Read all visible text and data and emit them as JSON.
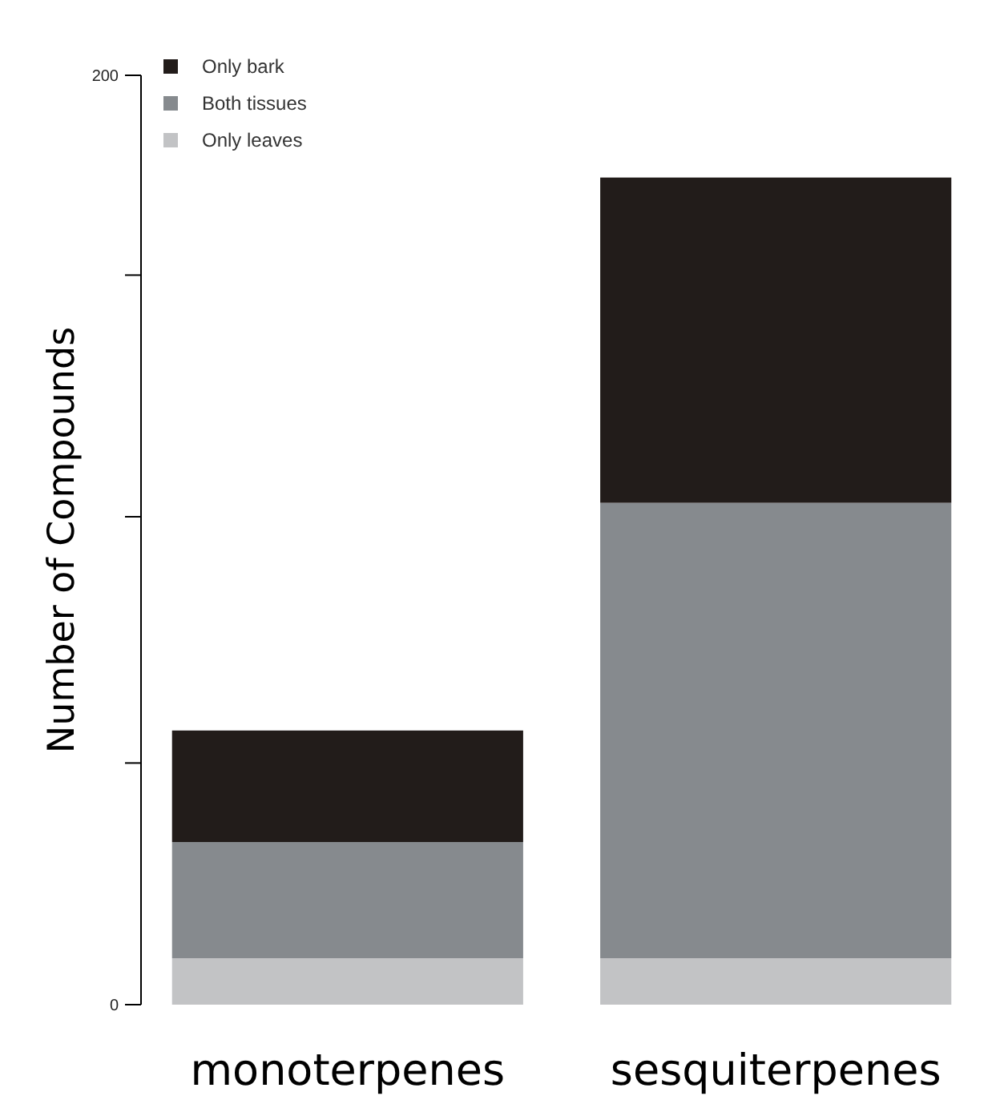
{
  "chart_data": {
    "type": "bar",
    "ylabel": "Number of Compounds",
    "categories": [
      "monoterpenes",
      "sesquiterpenes"
    ],
    "stacked": true,
    "series": [
      {
        "name": "Only leaves",
        "color": "#c2c3c5",
        "values": [
          10,
          10
        ]
      },
      {
        "name": "Both tissues",
        "color": "#868a8e",
        "values": [
          25,
          98
        ]
      },
      {
        "name": "Only bark",
        "color": "#221c1a",
        "values": [
          24,
          70
        ]
      }
    ],
    "ylim": [
      0,
      200
    ],
    "yticks": [
      0,
      {
        "value": 52,
        "label": null
      },
      {
        "value": 105,
        "label": null
      },
      {
        "value": 157,
        "label": null
      },
      200
    ],
    "legend": "top left",
    "grid": false
  }
}
